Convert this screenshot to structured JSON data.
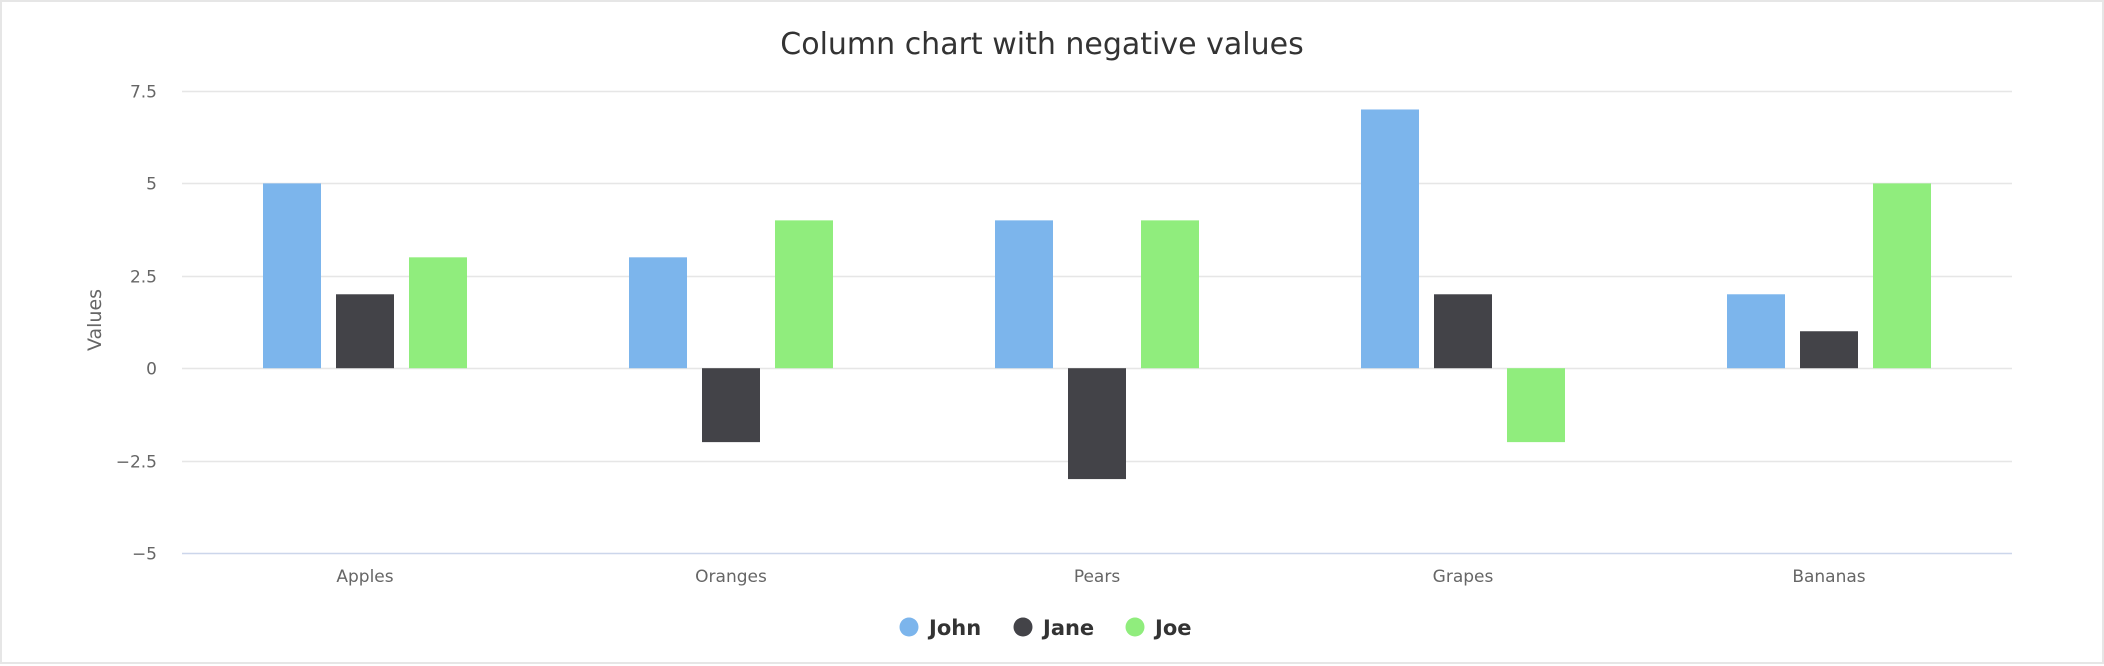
{
  "chart_data": {
    "type": "bar",
    "title": "Column chart with negative values",
    "xlabel": "",
    "ylabel": "Values",
    "categories": [
      "Apples",
      "Oranges",
      "Pears",
      "Grapes",
      "Bananas"
    ],
    "series": [
      {
        "name": "John",
        "color": "#7cb5ec",
        "values": [
          5,
          3,
          4,
          7,
          2
        ]
      },
      {
        "name": "Jane",
        "color": "#434348",
        "values": [
          2,
          -2,
          -3,
          2,
          1
        ]
      },
      {
        "name": "Joe",
        "color": "#90ed7d",
        "values": [
          3,
          4,
          4,
          -2,
          5
        ]
      }
    ],
    "ylim": [
      -5,
      7.5
    ],
    "yticks": [
      -5,
      -2.5,
      0,
      2.5,
      5,
      7.5
    ],
    "ytick_labels": [
      "−5",
      "−2.5",
      "0",
      "2.5",
      "5",
      "7.5"
    ],
    "grid": true,
    "legend_position": "bottom-center"
  }
}
